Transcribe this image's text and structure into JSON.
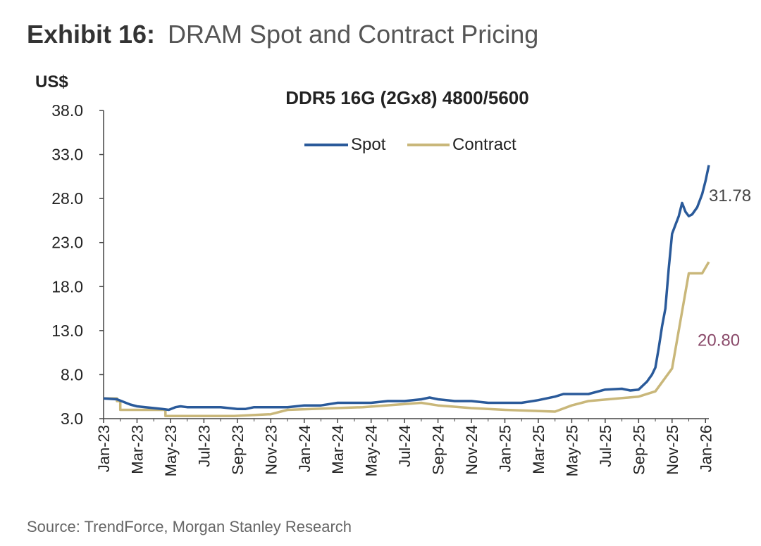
{
  "header": {
    "exhibit_label": "Exhibit 16:",
    "exhibit_title": "DRAM Spot and Contract Pricing"
  },
  "footer": {
    "source": "Source: TrendForce, Morgan Stanley Research"
  },
  "colors": {
    "spot": "#2a5a9a",
    "contract": "#c9b77a",
    "spot_label": "#444444",
    "contract_label": "#8a4a6a"
  },
  "chart_data": {
    "type": "line",
    "title": "DDR5 16G (2Gx8) 4800/5600",
    "ylabel": "US$",
    "xlabel": "",
    "ylim": [
      3.0,
      38.0
    ],
    "yticks": [
      "38.0",
      "33.0",
      "28.0",
      "23.0",
      "18.0",
      "13.0",
      "8.0",
      "3.0"
    ],
    "ytick_values": [
      38,
      33,
      28,
      23,
      18,
      13,
      8,
      3
    ],
    "xticks": [
      "Jan-23",
      "Mar-23",
      "May-23",
      "Jul-23",
      "Sep-23",
      "Nov-23",
      "Jan-24",
      "Mar-24",
      "May-24",
      "Jul-24",
      "Sep-24",
      "Nov-24",
      "Jan-25",
      "Mar-25",
      "May-25",
      "Jul-25",
      "Sep-25",
      "Nov-25",
      "Jan-26"
    ],
    "xlim": [
      0,
      36.2
    ],
    "legend": [
      "Spot",
      "Contract"
    ],
    "legend_position": "top-center",
    "grid": false,
    "series": [
      {
        "name": "Spot",
        "x": [
          0,
          0.8,
          1.2,
          1.6,
          2.0,
          2.5,
          3.0,
          3.5,
          3.9,
          4.3,
          4.6,
          5.0,
          6.0,
          7.0,
          8.0,
          8.5,
          9.0,
          10.0,
          11.0,
          12.0,
          12.5,
          13.0,
          14.0,
          15.0,
          16.0,
          17.0,
          18.0,
          19.0,
          19.5,
          20.0,
          21.0,
          22.0,
          23.0,
          24.0,
          25.0,
          26.0,
          26.5,
          27.0,
          27.5,
          28.0,
          29.0,
          30.0,
          31.0,
          31.5,
          32.0,
          32.5,
          32.8,
          33.0,
          33.2,
          33.4,
          33.6,
          33.8,
          34.0,
          34.2,
          34.4,
          34.6,
          34.8,
          35.0,
          35.2,
          35.5,
          35.8,
          36.0,
          36.2
        ],
        "values": [
          5.3,
          5.2,
          4.9,
          4.6,
          4.4,
          4.3,
          4.2,
          4.1,
          4.0,
          4.3,
          4.4,
          4.3,
          4.3,
          4.3,
          4.1,
          4.1,
          4.3,
          4.3,
          4.3,
          4.5,
          4.5,
          4.5,
          4.8,
          4.8,
          4.8,
          5.0,
          5.0,
          5.2,
          5.4,
          5.2,
          5.0,
          5.0,
          4.8,
          4.8,
          4.8,
          5.1,
          5.3,
          5.5,
          5.8,
          5.8,
          5.8,
          6.3,
          6.4,
          6.2,
          6.3,
          7.2,
          8.0,
          8.8,
          11.0,
          13.5,
          15.5,
          20.0,
          24.0,
          25.0,
          26.0,
          27.5,
          26.5,
          26.0,
          26.2,
          27.0,
          28.5,
          30.0,
          31.78
        ]
      },
      {
        "name": "Contract",
        "x": [
          0,
          0.8,
          0.8,
          1.0,
          1.0,
          3.7,
          3.7,
          7.8,
          7.8,
          10.0,
          10.0,
          11.0,
          11.0,
          15.5,
          15.5,
          19.0,
          19.0,
          20.0,
          20.0,
          22.0,
          22.0,
          24.0,
          24.0,
          27.0,
          27.0,
          28.0,
          28.0,
          29.0,
          29.0,
          32.0,
          32.0,
          33.0,
          33.0,
          34.0,
          34.0,
          35.0,
          35.0,
          35.8,
          35.8,
          36.2
        ],
        "values": [
          5.3,
          5.3,
          5.0,
          5.0,
          4.0,
          4.0,
          3.3,
          3.3,
          3.3,
          3.5,
          3.5,
          4.0,
          4.0,
          4.3,
          4.3,
          4.8,
          4.8,
          4.5,
          4.5,
          4.2,
          4.2,
          4.0,
          4.0,
          3.8,
          3.8,
          4.5,
          4.5,
          5.0,
          5.0,
          5.5,
          5.5,
          6.1,
          6.1,
          8.7,
          8.7,
          19.5,
          19.5,
          19.5,
          19.5,
          20.8
        ]
      }
    ],
    "annotations": [
      {
        "series": "Spot",
        "text": "31.78",
        "value": 31.78
      },
      {
        "series": "Contract",
        "text": "20.80",
        "value": 20.8
      }
    ]
  }
}
